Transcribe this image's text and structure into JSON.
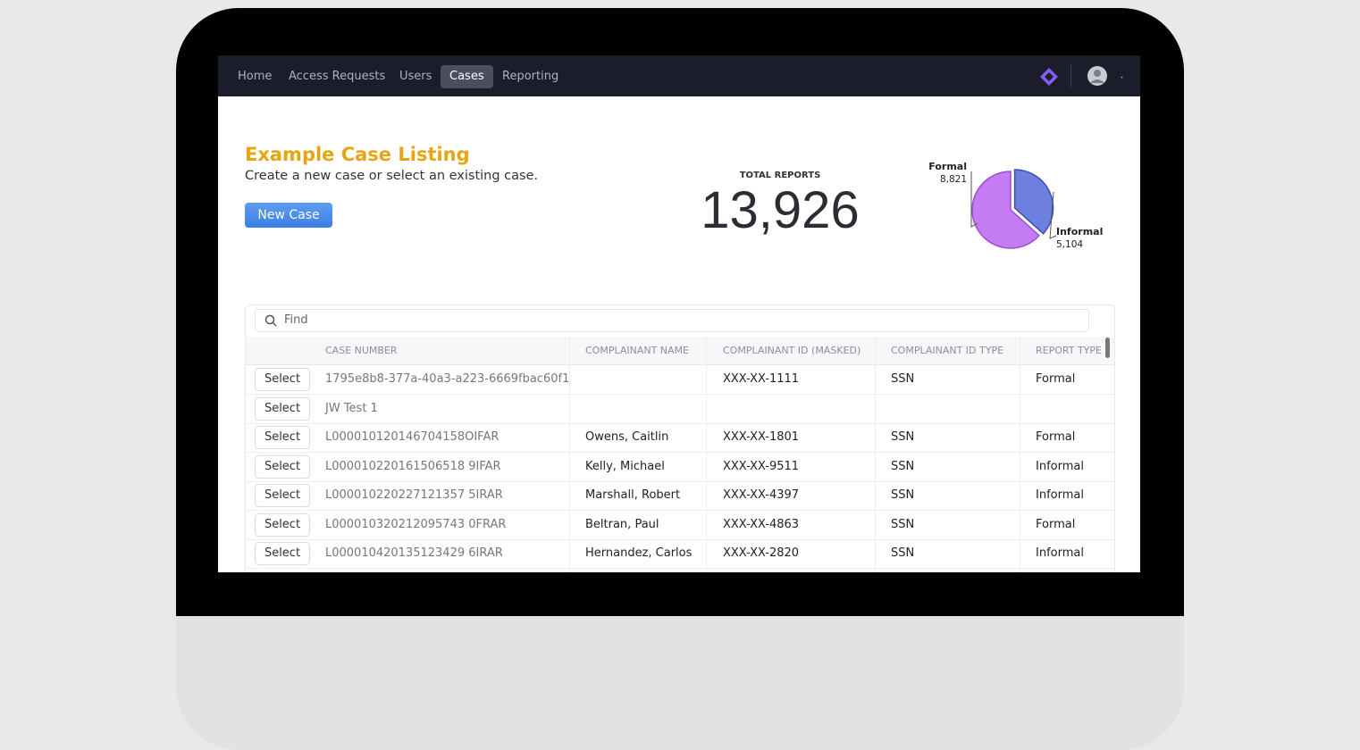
{
  "nav": {
    "items": [
      "Home",
      "Access Requests",
      "Users",
      "Cases",
      "Reporting"
    ],
    "active": 3
  },
  "header": {
    "title": "Example Case Listing",
    "subtitle": "Create a new case or select an existing case.",
    "button": "New Case"
  },
  "stats": {
    "label": "TOTAL REPORTS",
    "total": "13,926"
  },
  "chart_data": {
    "type": "pie",
    "categories": [
      "Formal",
      "Informal"
    ],
    "values": [
      8821,
      5104
    ],
    "value_labels": [
      "8,821",
      "5,104"
    ],
    "colors": [
      "#c57cf2",
      "#6d80e0"
    ]
  },
  "table": {
    "search_placeholder": "Find",
    "action_label": "Select",
    "columns": [
      "CASE NUMBER",
      "COMPLAINANT NAME",
      "COMPLAINANT ID (MASKED)",
      "COMPLAINANT ID TYPE",
      "REPORT TYPE"
    ],
    "rows": [
      [
        "1795e8b8-377a-40a3-a223-6669fbac60f1",
        null,
        "XXX-XX-1111",
        "SSN",
        "Formal"
      ],
      [
        "JW Test 1",
        null,
        null,
        null,
        null
      ],
      [
        "L000010120146704158OIFAR",
        "Owens, Caitlin",
        "XXX-XX-1801",
        "SSN",
        "Formal"
      ],
      [
        "L000010220161506518 9IFAR",
        "Kelly, Michael",
        "XXX-XX-9511",
        "SSN",
        "Informal"
      ],
      [
        "L000010220227121357 5IRAR",
        "Marshall, Robert",
        "XXX-XX-4397",
        "SSN",
        "Informal"
      ],
      [
        "L000010320212095743 0FRAR",
        "Beltran, Paul",
        "XXX-XX-4863",
        "SSN",
        "Formal"
      ],
      [
        "L000010420135123429 6IRAR",
        "Hernandez, Carlos",
        "XXX-XX-2820",
        "SSN",
        "Informal"
      ]
    ]
  }
}
